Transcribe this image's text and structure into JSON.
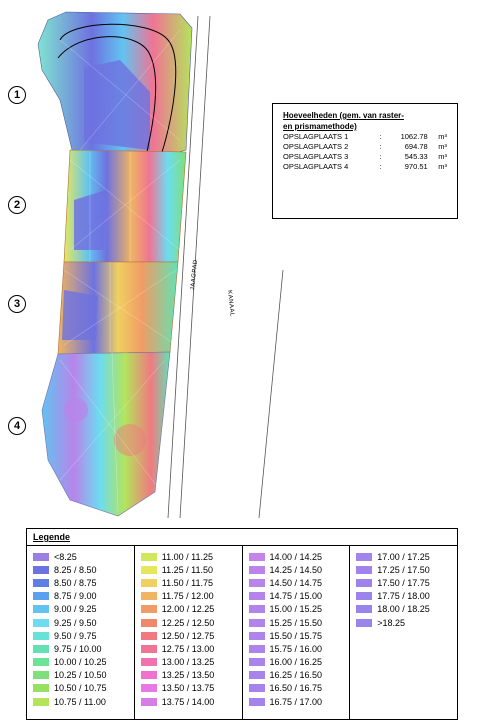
{
  "markers": [
    "1",
    "2",
    "3",
    "4"
  ],
  "road_labels": {
    "path": "JAAGPAD",
    "canal": "KANAAL"
  },
  "volumes": {
    "title_line1": "Hoeveelheden (gem. van raster-",
    "title_line2": "en prismamethode)",
    "rows": [
      {
        "name": "OPSLAGPLAATS 1",
        "colon": ":",
        "value": "1062.78",
        "unit": "m³"
      },
      {
        "name": "OPSLAGPLAATS 2",
        "colon": ":",
        "value": "694.78",
        "unit": "m³"
      },
      {
        "name": "OPSLAGPLAATS 3",
        "colon": ":",
        "value": "545.33",
        "unit": "m³"
      },
      {
        "name": "OPSLAGPLAATS 4",
        "colon": ":",
        "value": "970.51",
        "unit": "m³"
      }
    ]
  },
  "legend": {
    "title": "Legende",
    "columns": [
      [
        {
          "label": "<8.25",
          "color": "#9a7ee0"
        },
        {
          "label": "8.25  /  8.50",
          "color": "#6e72e0"
        },
        {
          "label": "8.50  /  8.75",
          "color": "#5f7fe8"
        },
        {
          "label": "8.75  /  9.00",
          "color": "#5aa0ee"
        },
        {
          "label": "9.00  /  9.25",
          "color": "#62c3f0"
        },
        {
          "label": "9.25  /  9.50",
          "color": "#6cdcf0"
        },
        {
          "label": "9.50  /  9.75",
          "color": "#66e2d6"
        },
        {
          "label": "9.75  /  10.00",
          "color": "#62e2b2"
        },
        {
          "label": "10.00  /  10.25",
          "color": "#6ee296"
        },
        {
          "label": "10.25  /  10.50",
          "color": "#7ee07a"
        },
        {
          "label": "10.50  /  10.75",
          "color": "#98e064"
        },
        {
          "label": "10.75  /  11.00",
          "color": "#b4e45c"
        }
      ],
      [
        {
          "label": "11.00  /  11.25",
          "color": "#cfe85c"
        },
        {
          "label": "11.25  /  11.50",
          "color": "#e6e85c"
        },
        {
          "label": "11.50  /  11.75",
          "color": "#f0d060"
        },
        {
          "label": "11.75  /  12.00",
          "color": "#f0b462"
        },
        {
          "label": "12.00  /  12.25",
          "color": "#f09c66"
        },
        {
          "label": "12.25  /  12.50",
          "color": "#f0886e"
        },
        {
          "label": "12.50  /  12.75",
          "color": "#f07a80"
        },
        {
          "label": "12.75  /  13.00",
          "color": "#f07494"
        },
        {
          "label": "13.00  /  13.25",
          "color": "#f072b0"
        },
        {
          "label": "13.25  /  13.50",
          "color": "#f072cc"
        },
        {
          "label": "13.50  /  13.75",
          "color": "#e878e4"
        },
        {
          "label": "13.75  /  14.00",
          "color": "#d67ee8"
        }
      ],
      [
        {
          "label": "14.00  /  14.25",
          "color": "#c484ea"
        },
        {
          "label": "14.25  /  14.50",
          "color": "#bb84ea"
        },
        {
          "label": "14.50  /  14.75",
          "color": "#b884ea"
        },
        {
          "label": "14.75  /  15.00",
          "color": "#b584ea"
        },
        {
          "label": "15.00  /  15.25",
          "color": "#b284ea"
        },
        {
          "label": "15.25  /  15.50",
          "color": "#b084ea"
        },
        {
          "label": "15.50  /  15.75",
          "color": "#ae84ea"
        },
        {
          "label": "15.75  /  16.00",
          "color": "#ac84ea"
        },
        {
          "label": "16.00  /  16.25",
          "color": "#aa84ea"
        },
        {
          "label": "16.25  /  16.50",
          "color": "#a884ea"
        },
        {
          "label": "16.50  /  16.75",
          "color": "#a684ea"
        },
        {
          "label": "16.75  /  17.00",
          "color": "#a484ea"
        }
      ],
      [
        {
          "label": "17.00  /  17.25",
          "color": "#a284ea"
        },
        {
          "label": "17.25  /  17.50",
          "color": "#a084ea"
        },
        {
          "label": "17.50  /  17.75",
          "color": "#9e84ea"
        },
        {
          "label": "17.75  /  18.00",
          "color": "#9c84ea"
        },
        {
          "label": "18.00  /  18.25",
          "color": "#9a84ea"
        },
        {
          "label": ">18.25",
          "color": "#9884ea"
        }
      ]
    ]
  }
}
